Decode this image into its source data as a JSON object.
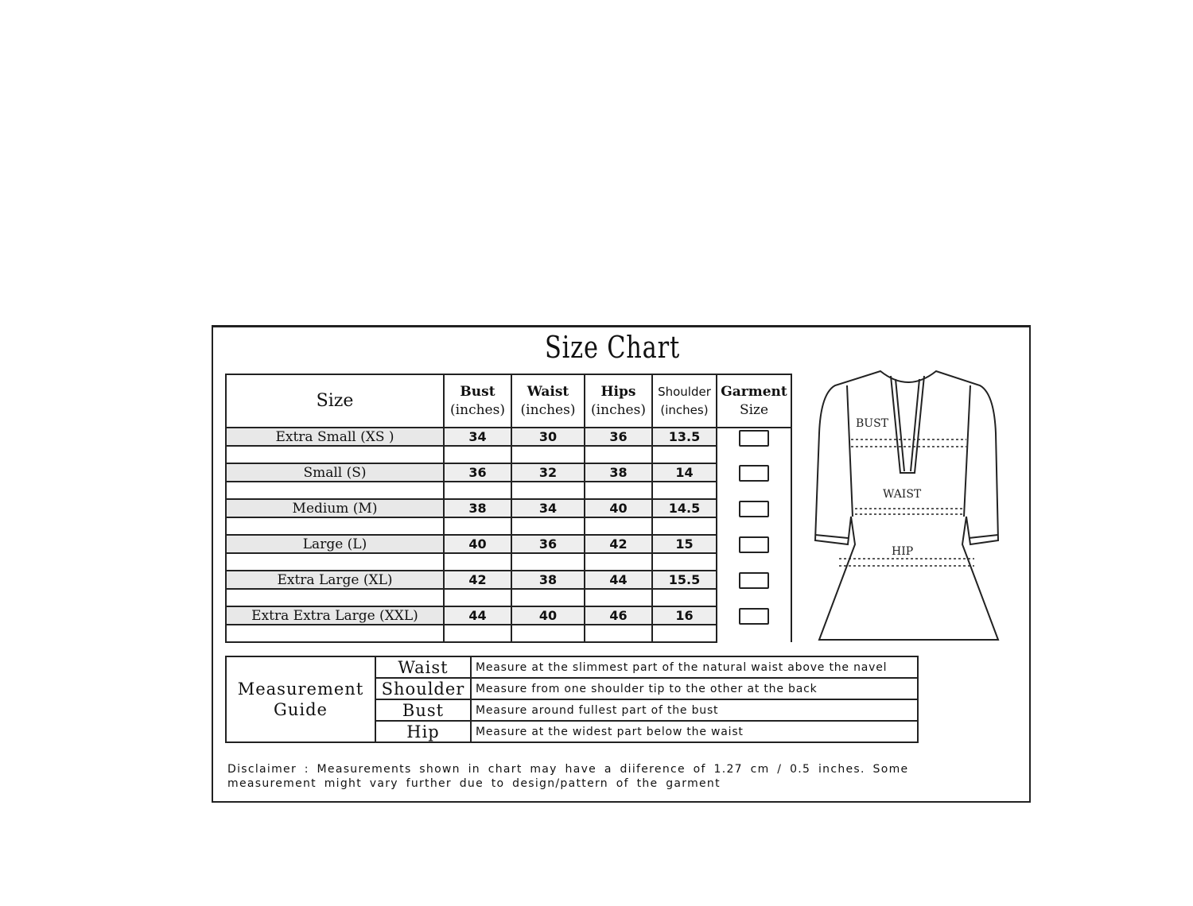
{
  "title": "Size Chart",
  "size_table": {
    "headers": [
      [
        "Size",
        ""
      ],
      [
        "Bust",
        "(inches)"
      ],
      [
        "Waist",
        "(inches)"
      ],
      [
        "Hips",
        "(inches)"
      ],
      [
        "Shoulder",
        "(inches)"
      ],
      [
        "Garment",
        "Size"
      ]
    ],
    "rows": [
      {
        "size": "Extra Small  (XS )",
        "bust": "34",
        "waist": "30",
        "hips": "36",
        "shoulder": "13.5"
      },
      {
        "size": "Small  (S)",
        "bust": "36",
        "waist": "32",
        "hips": "38",
        "shoulder": "14"
      },
      {
        "size": "Medium (M)",
        "bust": "38",
        "waist": "34",
        "hips": "40",
        "shoulder": "14.5"
      },
      {
        "size": "Large (L)",
        "bust": "40",
        "waist": "36",
        "hips": "42",
        "shoulder": "15"
      },
      {
        "size": "Extra Large (XL)",
        "bust": "42",
        "waist": "38",
        "hips": "44",
        "shoulder": "15.5"
      },
      {
        "size": "Extra Extra Large (XXL)",
        "bust": "44",
        "waist": "40",
        "hips": "46",
        "shoulder": "16"
      }
    ]
  },
  "garment_labels": {
    "bust": "BUST",
    "waist": "WAIST",
    "hip": "HIP"
  },
  "guide": {
    "title": "Measurement Guide",
    "rows": [
      {
        "label": "Waist",
        "text": "Measure at the slimmest part of the natural waist above the navel"
      },
      {
        "label": "Shoulder",
        "text": "Measure from one shoulder tip to the other at the back"
      },
      {
        "label": "Bust",
        "text": "Measure around fullest part of the bust"
      },
      {
        "label": "Hip",
        "text": "Measure at the widest part below the waist"
      }
    ]
  },
  "disclaimer": "Disclaimer : Measurements shown in chart may have a diiference of 1.27 cm / 0.5 inches. Some measurement might vary further due to design/pattern of the garment"
}
